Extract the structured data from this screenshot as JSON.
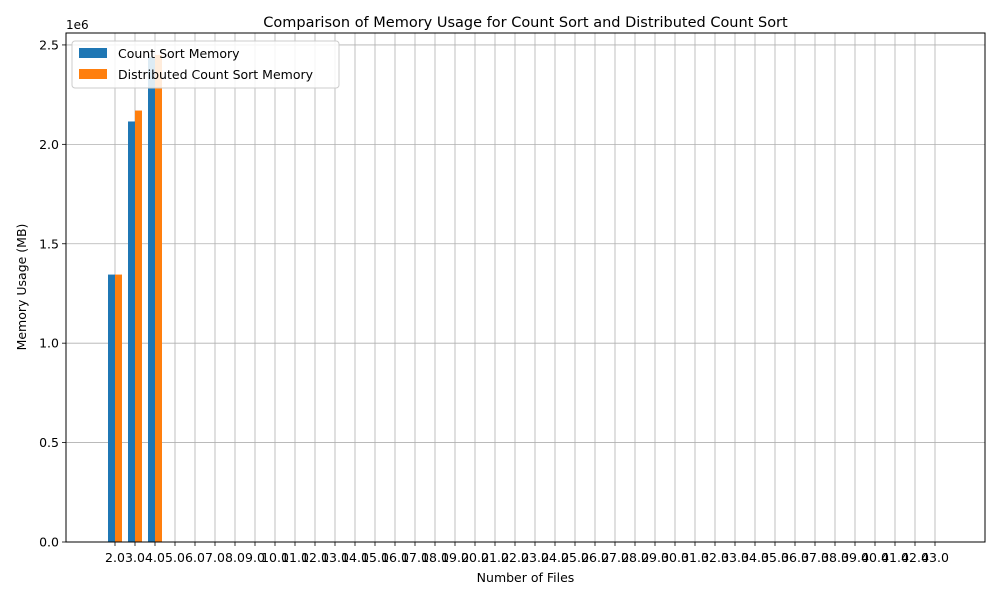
{
  "chart_data": {
    "type": "bar",
    "title": "Comparison of Memory Usage for Count Sort and Distributed Count Sort",
    "xlabel": "Number of Files",
    "ylabel": "Memory Usage (MB)",
    "y_offset_label": "1e6",
    "ylim": [
      0,
      2.56
    ],
    "y_scale_note": "values in millions (×1e6)",
    "grid": true,
    "legend_position": "top-left",
    "categories": [
      "2.0",
      "3.0",
      "4.0",
      "5.0",
      "6.0",
      "7.0",
      "8.0",
      "9.0",
      "10.0",
      "11.0",
      "12.0",
      "13.0",
      "14.0",
      "15.0",
      "16.0",
      "17.0",
      "18.0",
      "19.0",
      "20.0",
      "21.0",
      "22.0",
      "23.0",
      "24.0",
      "25.0",
      "26.0",
      "27.0",
      "28.0",
      "29.0",
      "30.0",
      "31.0",
      "32.0",
      "33.0",
      "34.0",
      "35.0",
      "36.0",
      "37.0",
      "38.0",
      "39.0",
      "40.0",
      "41.0",
      "42.0",
      "43.0"
    ],
    "yticks": [
      "0.0",
      "0.5",
      "1.0",
      "1.5",
      "2.0",
      "2.5"
    ],
    "series": [
      {
        "name": "Count Sort Memory",
        "color": "#1f77b4",
        "values": [
          1.345,
          2.115,
          2.44,
          0.002,
          0.002,
          0.002,
          0.002,
          0.002,
          0.002,
          0.002,
          0.0,
          0.002,
          0.002,
          0.002,
          0.002,
          0.002,
          0.002,
          0.002,
          0.002,
          0.002,
          0.002,
          0.002,
          0.002,
          0.002,
          0.002,
          0.0,
          0.002,
          0.002,
          0.002,
          0.002,
          0.002,
          0.002,
          0.002,
          0.002,
          0.002,
          0.002,
          0.002,
          0.002,
          0.002,
          0.002,
          0.002,
          0.002
        ]
      },
      {
        "name": "Distributed Count Sort Memory",
        "color": "#ff7f0e",
        "values": [
          1.345,
          2.17,
          2.45,
          0.002,
          0.002,
          0.002,
          0.002,
          0.002,
          0.002,
          0.002,
          0.0,
          0.002,
          0.002,
          0.002,
          0.002,
          0.002,
          0.002,
          0.002,
          0.002,
          0.002,
          0.002,
          0.002,
          0.002,
          0.002,
          0.002,
          0.0,
          0.002,
          0.002,
          0.002,
          0.002,
          0.002,
          0.002,
          0.002,
          0.002,
          0.002,
          0.002,
          0.002,
          0.002,
          0.002,
          0.002,
          0.002,
          0.002
        ]
      }
    ]
  }
}
